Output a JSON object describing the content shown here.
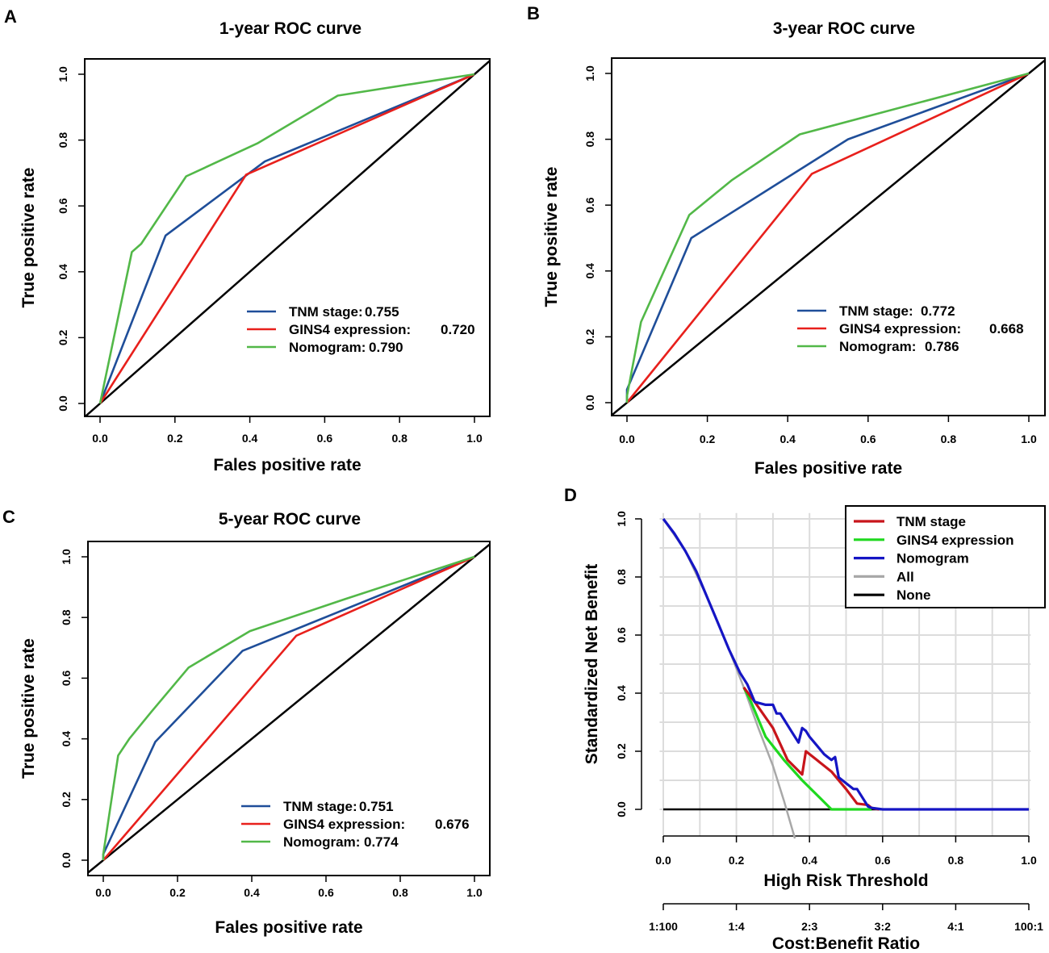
{
  "colors": {
    "tnm_roc": "#1f4e99",
    "gins4_roc": "#e8201c",
    "nomogram_roc": "#52b848",
    "diagonal": "#000000",
    "tnm_dca": "#c8151b",
    "gins4_dca": "#1fd81f",
    "nomogram_dca": "#1515c4",
    "all_dca": "#a8a8a8",
    "none_dca": "#000000",
    "grid": "#dcdcdc"
  },
  "chart_data": [
    {
      "panel": "A",
      "type": "line",
      "title": "1-year ROC curve",
      "xlabel": "Fales positive rate",
      "ylabel": "True positive rate",
      "xlim": [
        0,
        1
      ],
      "ylim": [
        0,
        1
      ],
      "xticks": [
        "0.0",
        "0.2",
        "0.4",
        "0.6",
        "0.8",
        "1.0"
      ],
      "yticks": [
        "0.0",
        "0.2",
        "0.4",
        "0.6",
        "0.8",
        "1.0"
      ],
      "legend_position": "bottom-right",
      "series": [
        {
          "name": "TNM stage:",
          "auc": "0.755",
          "color_key": "tnm_roc",
          "points": [
            [
              0,
              0
            ],
            [
              0.175,
              0.51
            ],
            [
              0.44,
              0.735
            ],
            [
              1,
              1
            ]
          ]
        },
        {
          "name": "GINS4 expression:",
          "auc": "0.720",
          "color_key": "gins4_roc",
          "points": [
            [
              0,
              0
            ],
            [
              0.39,
              0.695
            ],
            [
              1,
              1
            ]
          ]
        },
        {
          "name": "Nomogram:",
          "auc": "0.790",
          "color_key": "nomogram_roc",
          "points": [
            [
              0,
              0
            ],
            [
              0.085,
              0.46
            ],
            [
              0.11,
              0.485
            ],
            [
              0.23,
              0.69
            ],
            [
              0.42,
              0.79
            ],
            [
              0.635,
              0.935
            ],
            [
              1,
              1
            ]
          ]
        }
      ]
    },
    {
      "panel": "B",
      "type": "line",
      "title": "3-year ROC curve",
      "xlabel": "Fales positive rate",
      "ylabel": "True positive rate",
      "xlim": [
        0,
        1
      ],
      "ylim": [
        0,
        1
      ],
      "xticks": [
        "0.0",
        "0.2",
        "0.4",
        "0.6",
        "0.8",
        "1.0"
      ],
      "yticks": [
        "0.0",
        "0.2",
        "0.4",
        "0.6",
        "0.8",
        "1.0"
      ],
      "legend_position": "bottom-right",
      "series": [
        {
          "name": "TNM stage:",
          "auc": "0.772",
          "color_key": "tnm_roc",
          "points": [
            [
              0,
              0
            ],
            [
              0,
              0.04
            ],
            [
              0.16,
              0.5
            ],
            [
              0.55,
              0.8
            ],
            [
              1,
              1
            ]
          ]
        },
        {
          "name": "GINS4 expression:",
          "auc": "0.668",
          "color_key": "gins4_roc",
          "points": [
            [
              0,
              0
            ],
            [
              0.46,
              0.695
            ],
            [
              1,
              1
            ]
          ]
        },
        {
          "name": "Nomogram:",
          "auc": "0.786",
          "color_key": "nomogram_roc",
          "points": [
            [
              0,
              0
            ],
            [
              0,
              0.02
            ],
            [
              0.035,
              0.245
            ],
            [
              0.155,
              0.57
            ],
            [
              0.26,
              0.675
            ],
            [
              0.43,
              0.815
            ],
            [
              1,
              1
            ]
          ]
        }
      ]
    },
    {
      "panel": "C",
      "type": "line",
      "title": "5-year ROC curve",
      "xlabel": "Fales positive rate",
      "ylabel": "True positive rate",
      "xlim": [
        0,
        1
      ],
      "ylim": [
        0,
        1
      ],
      "xticks": [
        "0.0",
        "0.2",
        "0.4",
        "0.6",
        "0.8",
        "1.0"
      ],
      "yticks": [
        "0.0",
        "0.2",
        "0.4",
        "0.6",
        "0.8",
        "1.0"
      ],
      "legend_position": "bottom-right",
      "series": [
        {
          "name": "TNM stage:",
          "auc": "0.751",
          "color_key": "tnm_roc",
          "points": [
            [
              0,
              0
            ],
            [
              0,
              0.02
            ],
            [
              0.14,
              0.39
            ],
            [
              0.375,
              0.69
            ],
            [
              1,
              1
            ]
          ]
        },
        {
          "name": "GINS4 expression:",
          "auc": "0.676",
          "color_key": "gins4_roc",
          "points": [
            [
              0,
              0
            ],
            [
              0.52,
              0.74
            ],
            [
              1,
              1
            ]
          ]
        },
        {
          "name": "Nomogram:",
          "auc": "0.774",
          "color_key": "nomogram_roc",
          "points": [
            [
              0,
              0
            ],
            [
              0,
              0.02
            ],
            [
              0.04,
              0.345
            ],
            [
              0.07,
              0.4
            ],
            [
              0.13,
              0.49
            ],
            [
              0.23,
              0.635
            ],
            [
              0.395,
              0.755
            ],
            [
              0.65,
              0.86
            ],
            [
              1,
              1
            ]
          ]
        }
      ]
    },
    {
      "panel": "D",
      "type": "line",
      "title": "",
      "xlabel": "High Risk Threshold",
      "ylabel": "Standardized Net Benefit",
      "xlabel2": "Cost:Benefit Ratio",
      "xlim": [
        0,
        1
      ],
      "ylim": [
        0,
        1
      ],
      "xticks": [
        "0.0",
        "0.2",
        "0.4",
        "0.6",
        "0.8",
        "1.0"
      ],
      "yticks": [
        "0.0",
        "0.2",
        "0.4",
        "0.6",
        "0.8",
        "1.0"
      ],
      "xticks2": [
        "1:100",
        "1:4",
        "2:3",
        "3:2",
        "4:1",
        "100:1"
      ],
      "grid": true,
      "legend_position": "top-right",
      "series": [
        {
          "name": "TNM stage",
          "color_key": "tnm_dca",
          "points": [
            [
              0.22,
              0.42
            ],
            [
              0.25,
              0.37
            ],
            [
              0.3,
              0.28
            ],
            [
              0.34,
              0.17
            ],
            [
              0.38,
              0.12
            ],
            [
              0.39,
              0.2
            ],
            [
              0.42,
              0.17
            ],
            [
              0.46,
              0.13
            ],
            [
              0.5,
              0.07
            ],
            [
              0.53,
              0.02
            ],
            [
              0.56,
              0.015
            ],
            [
              0.57,
              0.005
            ],
            [
              0.59,
              0
            ]
          ]
        },
        {
          "name": "GINS4 expression",
          "color_key": "gins4_dca",
          "points": [
            [
              0.22,
              0.42
            ],
            [
              0.24,
              0.37
            ],
            [
              0.28,
              0.25
            ],
            [
              0.33,
              0.17
            ],
            [
              0.38,
              0.1
            ],
            [
              0.42,
              0.05
            ],
            [
              0.46,
              0
            ],
            [
              0.57,
              0
            ]
          ]
        },
        {
          "name": "Nomogram",
          "color_key": "nomogram_dca",
          "points": [
            [
              0,
              1
            ],
            [
              0.03,
              0.95
            ],
            [
              0.06,
              0.89
            ],
            [
              0.09,
              0.82
            ],
            [
              0.12,
              0.73
            ],
            [
              0.15,
              0.64
            ],
            [
              0.18,
              0.55
            ],
            [
              0.21,
              0.47
            ],
            [
              0.23,
              0.43
            ],
            [
              0.25,
              0.37
            ],
            [
              0.28,
              0.36
            ],
            [
              0.3,
              0.36
            ],
            [
              0.31,
              0.33
            ],
            [
              0.32,
              0.33
            ],
            [
              0.33,
              0.31
            ],
            [
              0.35,
              0.27
            ],
            [
              0.37,
              0.23
            ],
            [
              0.38,
              0.28
            ],
            [
              0.39,
              0.27
            ],
            [
              0.4,
              0.25
            ],
            [
              0.42,
              0.22
            ],
            [
              0.44,
              0.19
            ],
            [
              0.45,
              0.18
            ],
            [
              0.46,
              0.17
            ],
            [
              0.47,
              0.18
            ],
            [
              0.48,
              0.11
            ],
            [
              0.5,
              0.09
            ],
            [
              0.52,
              0.07
            ],
            [
              0.53,
              0.07
            ],
            [
              0.55,
              0.03
            ],
            [
              0.56,
              0.01
            ],
            [
              0.57,
              0.005
            ],
            [
              0.6,
              0
            ],
            [
              1,
              0
            ]
          ]
        },
        {
          "name": "All",
          "color_key": "all_dca",
          "points": [
            [
              0,
              1
            ],
            [
              0.06,
              0.89
            ],
            [
              0.12,
              0.73
            ],
            [
              0.18,
              0.55
            ],
            [
              0.22,
              0.42
            ],
            [
              0.26,
              0.28
            ],
            [
              0.3,
              0.15
            ],
            [
              0.33,
              0.03
            ],
            [
              0.36,
              -0.1
            ]
          ]
        },
        {
          "name": "None",
          "color_key": "none_dca",
          "points": [
            [
              0,
              0
            ],
            [
              1,
              0
            ]
          ]
        }
      ]
    }
  ]
}
